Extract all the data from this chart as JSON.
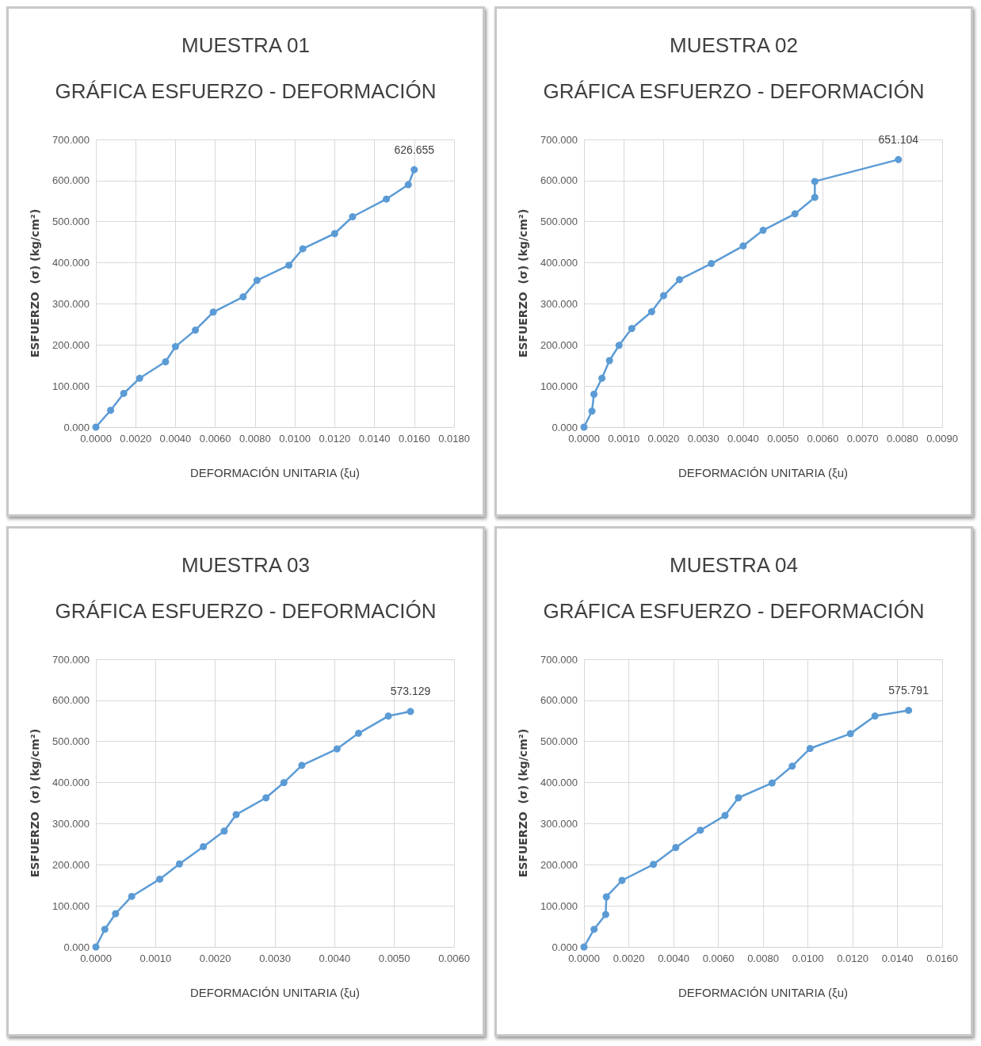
{
  "chart_data": [
    {
      "type": "line",
      "title": "MUESTRA 01",
      "subtitle": "GRÁFICA ESFUERZO - DEFORMACIÓN",
      "xlabel": "DEFORMACIÓN UNITARIA (ξu)",
      "ylabel": "ESFUERZO  (σ) (kg/cm²)",
      "series": [
        {
          "color": "#5b9bd5",
          "x": [
            0,
            0.00074,
            0.0014,
            0.0022,
            0.0035,
            0.004,
            0.005,
            0.0059,
            0.0074,
            0.0081,
            0.0097,
            0.0104,
            0.012,
            0.0129,
            0.0146,
            0.0157,
            0.016
          ],
          "values": [
            0,
            41,
            82,
            119,
            159,
            196,
            236,
            280,
            317,
            357,
            394,
            434,
            471,
            512,
            555,
            590,
            626.655
          ],
          "value_labels": [
            null,
            null,
            null,
            null,
            null,
            null,
            null,
            null,
            null,
            null,
            null,
            null,
            null,
            null,
            null,
            null,
            "626.655"
          ]
        }
      ],
      "xlim": [
        0,
        0.018
      ],
      "xticks": [
        {
          "value": 0,
          "label": "0.0000"
        },
        {
          "value": 0.002,
          "label": "0.0020"
        },
        {
          "value": 0.004,
          "label": "0.0040"
        },
        {
          "value": 0.006,
          "label": "0.0060"
        },
        {
          "value": 0.008,
          "label": "0.0080"
        },
        {
          "value": 0.01,
          "label": "0.0100"
        },
        {
          "value": 0.012,
          "label": "0.0120"
        },
        {
          "value": 0.014,
          "label": "0.0140"
        },
        {
          "value": 0.016,
          "label": "0.0160"
        },
        {
          "value": 0.018,
          "label": "0.0180"
        }
      ],
      "ylim": [
        0,
        700
      ],
      "yticks": [
        {
          "value": 0,
          "label": "0.000"
        },
        {
          "value": 100,
          "label": "100.000"
        },
        {
          "value": 200,
          "label": "200.000"
        },
        {
          "value": 300,
          "label": "300.000"
        },
        {
          "value": 400,
          "label": "400.000"
        },
        {
          "value": 500,
          "label": "500.000"
        },
        {
          "value": 600,
          "label": "600.000"
        },
        {
          "value": 700,
          "label": "700.000"
        }
      ],
      "grid": true,
      "marker": "circle",
      "line_style": "solid"
    },
    {
      "type": "line",
      "title": "MUESTRA 02",
      "subtitle": "GRÁFICA ESFUERZO - DEFORMACIÓN",
      "xlabel": "DEFORMACIÓN UNITARIA (ξu)",
      "ylabel": "ESFUERZO  (σ) (kg/cm²)",
      "series": [
        {
          "color": "#5b9bd5",
          "x": [
            0,
            0.0002,
            0.00025,
            0.00045,
            0.00064,
            0.00088,
            0.0012,
            0.0017,
            0.002,
            0.0024,
            0.0032,
            0.004,
            0.0045,
            0.0053,
            0.0058,
            0.0058,
            0.0079
          ],
          "values": [
            0,
            39,
            80,
            119,
            162,
            199,
            240,
            281,
            320,
            359,
            398,
            441,
            479,
            519,
            559,
            598,
            651.104
          ],
          "value_labels": [
            null,
            null,
            null,
            null,
            null,
            null,
            null,
            null,
            null,
            null,
            null,
            null,
            null,
            null,
            null,
            null,
            "651.104"
          ]
        }
      ],
      "xlim": [
        0,
        0.009
      ],
      "xticks": [
        {
          "value": 0,
          "label": "0.0000"
        },
        {
          "value": 0.001,
          "label": "0.0010"
        },
        {
          "value": 0.002,
          "label": "0.0020"
        },
        {
          "value": 0.003,
          "label": "0.0030"
        },
        {
          "value": 0.004,
          "label": "0.0040"
        },
        {
          "value": 0.005,
          "label": "0.0050"
        },
        {
          "value": 0.006,
          "label": "0.0060"
        },
        {
          "value": 0.007,
          "label": "0.0070"
        },
        {
          "value": 0.008,
          "label": "0.0080"
        },
        {
          "value": 0.009,
          "label": "0.0090"
        }
      ],
      "ylim": [
        0,
        700
      ],
      "yticks": [
        {
          "value": 0,
          "label": "0.000"
        },
        {
          "value": 100,
          "label": "100.000"
        },
        {
          "value": 200,
          "label": "200.000"
        },
        {
          "value": 300,
          "label": "300.000"
        },
        {
          "value": 400,
          "label": "400.000"
        },
        {
          "value": 500,
          "label": "500.000"
        },
        {
          "value": 600,
          "label": "600.000"
        },
        {
          "value": 700,
          "label": "700.000"
        }
      ],
      "grid": true,
      "marker": "circle",
      "line_style": "solid"
    },
    {
      "type": "line",
      "title": "MUESTRA 03",
      "subtitle": "GRÁFICA ESFUERZO - DEFORMACIÓN",
      "xlabel": "DEFORMACIÓN UNITARIA (ξu)",
      "ylabel": "ESFUERZO  (σ) (kg/cm²)",
      "series": [
        {
          "color": "#5b9bd5",
          "x": [
            0,
            0.00015,
            0.00033,
            0.0006,
            0.00107,
            0.0014,
            0.0018,
            0.00215,
            0.00235,
            0.00285,
            0.00315,
            0.00345,
            0.00404,
            0.0044,
            0.0049,
            0.00527
          ],
          "values": [
            0,
            43,
            81,
            123,
            165,
            202,
            244,
            282,
            322,
            363,
            400,
            442,
            482,
            520,
            562,
            573.129
          ],
          "value_labels": [
            null,
            null,
            null,
            null,
            null,
            null,
            null,
            null,
            null,
            null,
            null,
            null,
            null,
            null,
            null,
            "573.129"
          ]
        }
      ],
      "xlim": [
        0,
        0.006
      ],
      "xticks": [
        {
          "value": 0,
          "label": "0.0000"
        },
        {
          "value": 0.001,
          "label": "0.0010"
        },
        {
          "value": 0.002,
          "label": "0.0020"
        },
        {
          "value": 0.003,
          "label": "0.0030"
        },
        {
          "value": 0.004,
          "label": "0.0040"
        },
        {
          "value": 0.005,
          "label": "0.0050"
        },
        {
          "value": 0.006,
          "label": "0.0060"
        }
      ],
      "ylim": [
        0,
        700
      ],
      "yticks": [
        {
          "value": 0,
          "label": "0.000"
        },
        {
          "value": 100,
          "label": "100.000"
        },
        {
          "value": 200,
          "label": "200.000"
        },
        {
          "value": 300,
          "label": "300.000"
        },
        {
          "value": 400,
          "label": "400.000"
        },
        {
          "value": 500,
          "label": "500.000"
        },
        {
          "value": 600,
          "label": "600.000"
        },
        {
          "value": 700,
          "label": "700.000"
        }
      ],
      "grid": true,
      "marker": "circle",
      "line_style": "solid"
    },
    {
      "type": "line",
      "title": "MUESTRA 04",
      "subtitle": "GRÁFICA ESFUERZO - DEFORMACIÓN",
      "xlabel": "DEFORMACIÓN UNITARIA (ξu)",
      "ylabel": "ESFUERZO  (σ) (kg/cm²)",
      "series": [
        {
          "color": "#5b9bd5",
          "x": [
            0,
            0.00045,
            0.00097,
            0.001,
            0.0017,
            0.0031,
            0.0041,
            0.0052,
            0.0063,
            0.0069,
            0.0084,
            0.0093,
            0.0101,
            0.0119,
            0.013,
            0.0145
          ],
          "values": [
            0,
            43,
            79,
            122,
            162,
            201,
            242,
            284,
            320,
            363,
            399,
            440,
            483,
            519,
            562,
            575.791
          ],
          "value_labels": [
            null,
            null,
            null,
            null,
            null,
            null,
            null,
            null,
            null,
            null,
            null,
            null,
            null,
            null,
            null,
            "575.791"
          ]
        }
      ],
      "xlim": [
        0,
        0.016
      ],
      "xticks": [
        {
          "value": 0,
          "label": "0.0000"
        },
        {
          "value": 0.002,
          "label": "0.0020"
        },
        {
          "value": 0.004,
          "label": "0.0040"
        },
        {
          "value": 0.006,
          "label": "0.0060"
        },
        {
          "value": 0.008,
          "label": "0.0080"
        },
        {
          "value": 0.01,
          "label": "0.0100"
        },
        {
          "value": 0.012,
          "label": "0.0120"
        },
        {
          "value": 0.014,
          "label": "0.0140"
        },
        {
          "value": 0.016,
          "label": "0.0160"
        }
      ],
      "ylim": [
        0,
        700
      ],
      "yticks": [
        {
          "value": 0,
          "label": "0.000"
        },
        {
          "value": 100,
          "label": "100.000"
        },
        {
          "value": 200,
          "label": "200.000"
        },
        {
          "value": 300,
          "label": "300.000"
        },
        {
          "value": 400,
          "label": "400.000"
        },
        {
          "value": 500,
          "label": "500.000"
        },
        {
          "value": 600,
          "label": "600.000"
        },
        {
          "value": 700,
          "label": "700.000"
        }
      ],
      "grid": true,
      "marker": "circle",
      "line_style": "solid"
    }
  ]
}
